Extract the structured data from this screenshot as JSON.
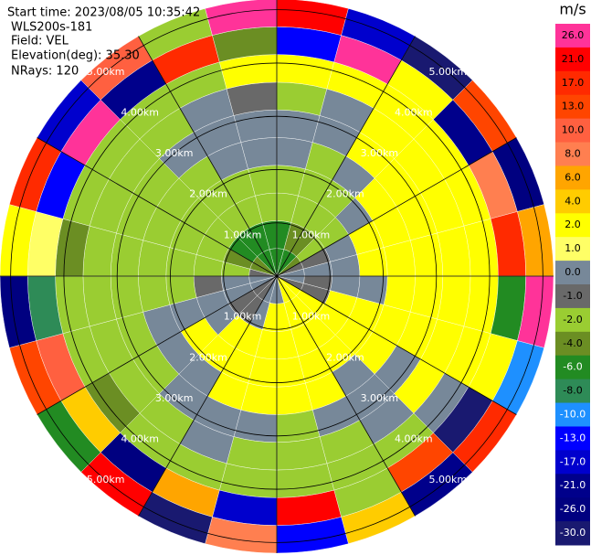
{
  "chart_data": {
    "type": "polar-heatmap",
    "header": [
      "Start time: 2023/08/05 10:35:42",
      "WLS200s-181",
      "Field: VEL",
      "Elevation(deg): 35.30",
      "NRays: 120"
    ],
    "colorbar_title": "m/s",
    "rlim": [
      0,
      5.2
    ],
    "rticks": [
      {
        "value": 1,
        "label": "1.00km"
      },
      {
        "value": 2,
        "label": "2.00km"
      },
      {
        "value": 3,
        "label": "3.00km"
      },
      {
        "value": 4,
        "label": "4.00km"
      },
      {
        "value": 5,
        "label": "5.00km"
      }
    ],
    "colorbar_ticks": [
      {
        "value": 26,
        "label": "26.0"
      },
      {
        "value": 21,
        "label": "21.0"
      },
      {
        "value": 17,
        "label": "17.0"
      },
      {
        "value": 13,
        "label": "13.0"
      },
      {
        "value": 10,
        "label": "10.0"
      },
      {
        "value": 8,
        "label": "8.0"
      },
      {
        "value": 6,
        "label": "6.0"
      },
      {
        "value": 4,
        "label": "4.0"
      },
      {
        "value": 2,
        "label": "2.0"
      },
      {
        "value": 1,
        "label": "1.0"
      },
      {
        "value": 0,
        "label": "0.0"
      },
      {
        "value": -1,
        "label": "-1.0"
      },
      {
        "value": -2,
        "label": "-2.0"
      },
      {
        "value": -4,
        "label": "-4.0"
      },
      {
        "value": -6,
        "label": "-6.0"
      },
      {
        "value": -8,
        "label": "-8.0"
      },
      {
        "value": -10,
        "label": "-10.0"
      },
      {
        "value": -13,
        "label": "-13.0"
      },
      {
        "value": -17,
        "label": "-17.0"
      },
      {
        "value": -21,
        "label": "-21.0"
      },
      {
        "value": -26,
        "label": "-26.0"
      },
      {
        "value": -30,
        "label": "-30.0"
      }
    ],
    "colorbar_colors": [
      "#ff3399",
      "#ff0000",
      "#ff2a00",
      "#ff4500",
      "#ff6040",
      "#ff7f50",
      "#ffa500",
      "#ffcc00",
      "#ffff00",
      "#ffff66",
      "#778899",
      "#696969",
      "#9acd32",
      "#6b8e23",
      "#228b22",
      "#2e8b57",
      "#1e90ff",
      "#0000ff",
      "#0000cd",
      "#00008b",
      "#000080",
      "#191970"
    ],
    "values": [
      [
        -6,
        -6,
        -6,
        -4,
        -1,
        0,
        0,
        -1,
        2,
        2,
        2,
        0,
        0,
        0,
        -1,
        -1,
        0,
        0,
        -1,
        -4,
        -4,
        -6,
        -6,
        -6
      ],
      [
        -6,
        -4,
        -4,
        -2,
        -1,
        0,
        -1,
        -1,
        2,
        2,
        2,
        2,
        2,
        0,
        -1,
        -1,
        0,
        0,
        -2,
        -4,
        -6,
        -6,
        -6,
        -6
      ],
      [
        -2,
        -2,
        -2,
        -2,
        0,
        0,
        0,
        2,
        2,
        2,
        2,
        2,
        2,
        2,
        2,
        0,
        0,
        -1,
        -2,
        -2,
        -2,
        -2,
        -2,
        -2
      ],
      [
        -2,
        -2,
        -2,
        0,
        2,
        2,
        0,
        2,
        2,
        2,
        2,
        2,
        2,
        2,
        2,
        2,
        0,
        -2,
        -2,
        -2,
        -2,
        -2,
        -2,
        -2
      ],
      [
        0,
        -2,
        0,
        2,
        2,
        2,
        2,
        2,
        2,
        0,
        2,
        2,
        2,
        2,
        0,
        0,
        0,
        -2,
        -2,
        -2,
        -2,
        -2,
        0,
        0
      ],
      [
        0,
        0,
        2,
        2,
        2,
        2,
        2,
        2,
        0,
        0,
        0,
        -2,
        0,
        0,
        0,
        -2,
        -2,
        -2,
        -2,
        -2,
        -2,
        0,
        0,
        0
      ],
      [
        -2,
        0,
        2,
        2,
        2,
        2,
        2,
        2,
        2,
        0,
        -2,
        -2,
        -2,
        0,
        -2,
        -2,
        -2,
        -2,
        -2,
        -2,
        -2,
        -2,
        0,
        -1
      ],
      [
        2,
        2,
        2,
        2,
        2,
        2,
        2,
        2,
        0,
        -2,
        -2,
        -2,
        -2,
        -2,
        -2,
        -4,
        -2,
        -2,
        -4,
        -2,
        -2,
        -2,
        -2,
        2
      ],
      [
        -13,
        26,
        2,
        -21,
        8,
        17,
        -6,
        2,
        -30,
        13,
        -2,
        21,
        -17,
        6,
        -26,
        4,
        10,
        -8,
        1,
        -13,
        26,
        -21,
        17,
        -4
      ],
      [
        21,
        -17,
        -30,
        13,
        -26,
        6,
        26,
        -10,
        17,
        -21,
        4,
        -13,
        8,
        -30,
        21,
        -6,
        13,
        -26,
        2,
        17,
        -17,
        10,
        -2,
        26
      ]
    ]
  }
}
